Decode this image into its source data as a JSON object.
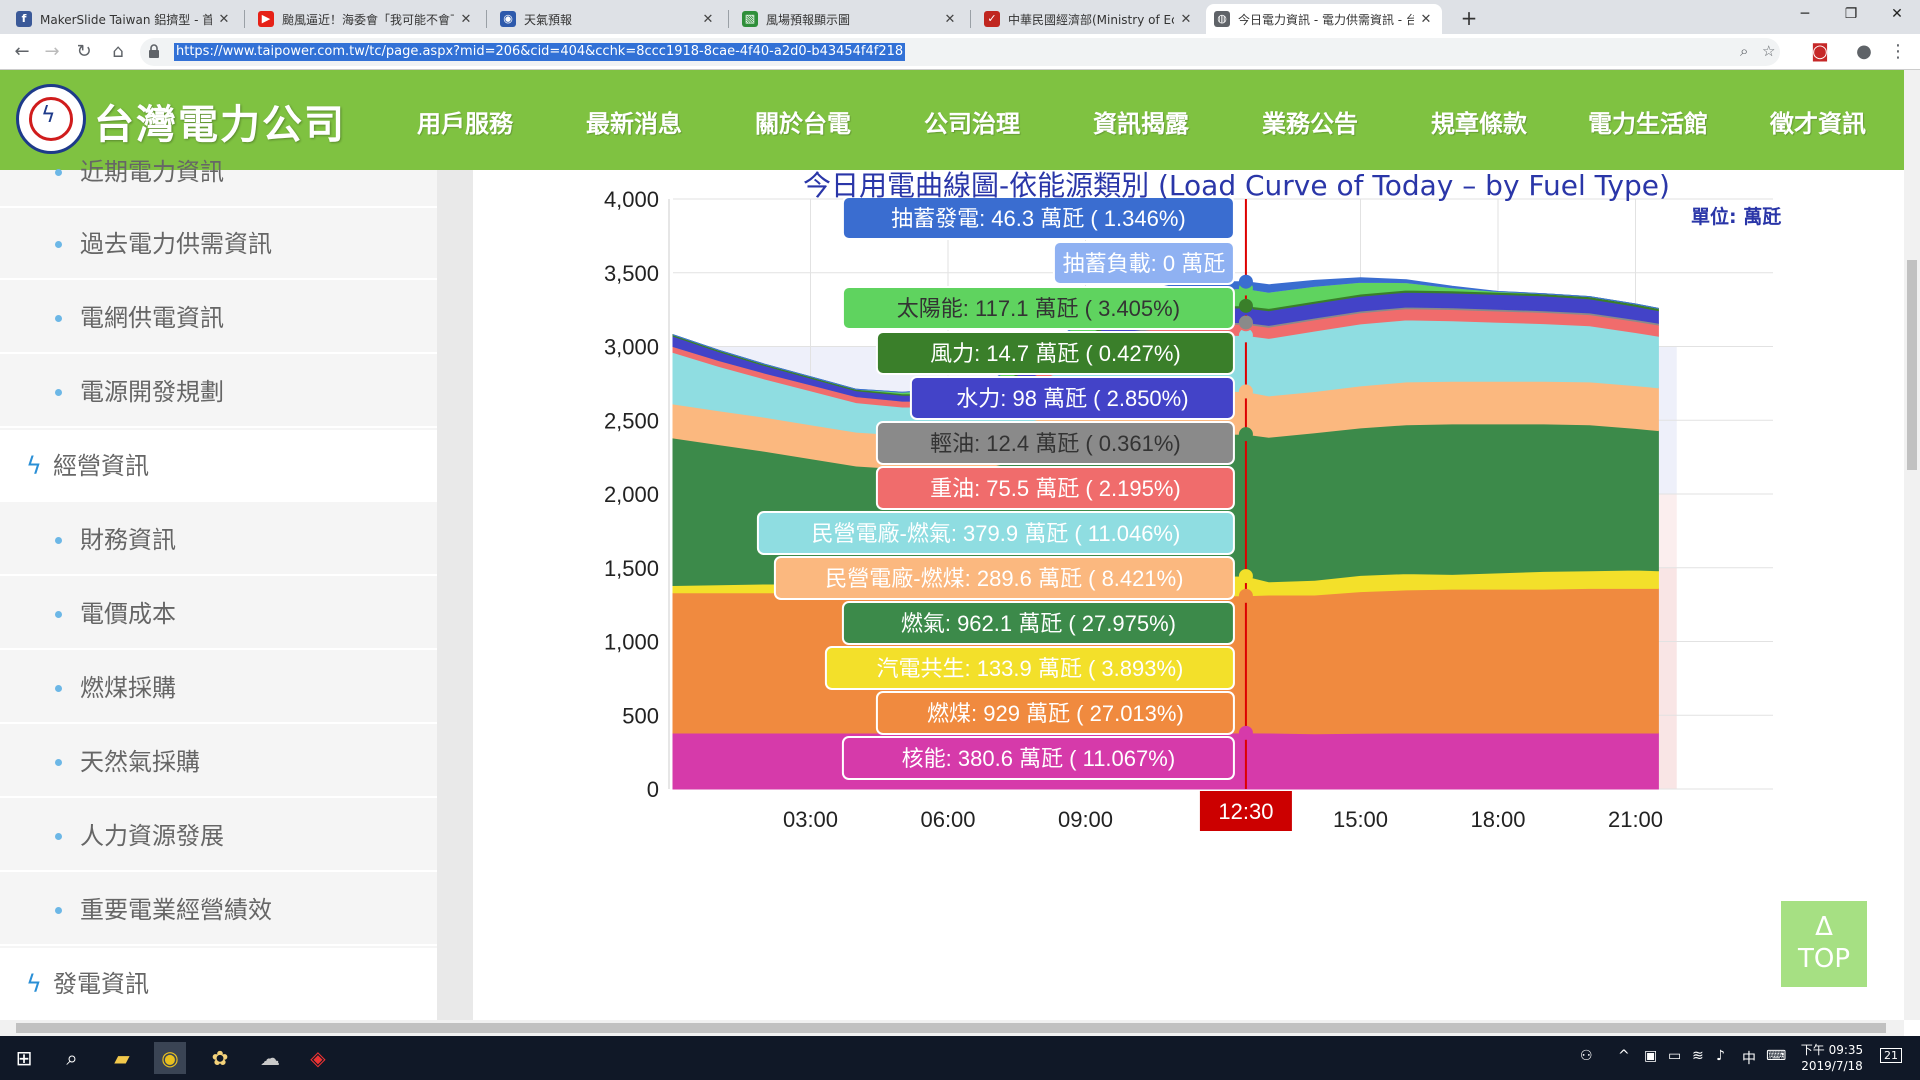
{
  "tabs": [
    {
      "title": "MakerSlide Taiwan 鋁擠型 - 首頁",
      "favicon": "facebook-icon",
      "color": "#3b5998",
      "glyph": "f"
    },
    {
      "title": "颱風逼近！海委會「我可能不會下」",
      "favicon": "youtube-icon",
      "color": "#e62117",
      "glyph": "▶"
    },
    {
      "title": "天氣預報",
      "favicon": "cwb-icon",
      "color": "#2e5aac",
      "glyph": "◉"
    },
    {
      "title": "風場預報顯示圖",
      "favicon": "map-icon",
      "color": "#2f8f3a",
      "glyph": "▧"
    },
    {
      "title": "中華民國經濟部(Ministry of Economic",
      "favicon": "moea-icon",
      "color": "#c0261f",
      "glyph": "✓"
    },
    {
      "title": "今日電力資訊 - 電力供需資訊 - 台",
      "favicon": "globe-icon",
      "color": "#5f6368",
      "glyph": "◍"
    }
  ],
  "toolbar": {
    "url": "https://www.taipower.com.tw/tc/page.aspx?mid=206&cid=404&cchk=8ccc1918-8cae-4f40-a2d0-b43454f4f218"
  },
  "site": {
    "name": "台灣電力公司",
    "menu": [
      "用戶服務",
      "最新消息",
      "關於台電",
      "公司治理",
      "資訊揭露",
      "業務公告",
      "規章條款",
      "電力生活館",
      "徵才資訊"
    ]
  },
  "sidebar": {
    "items": [
      {
        "label": "近期電力資訊",
        "type": "sub"
      },
      {
        "label": "過去電力供需資訊",
        "type": "sub"
      },
      {
        "label": "電網供電資訊",
        "type": "sub"
      },
      {
        "label": "電源開發規劃",
        "type": "sub"
      },
      {
        "label": "經營資訊",
        "type": "cat"
      },
      {
        "label": "財務資訊",
        "type": "sub"
      },
      {
        "label": "電價成本",
        "type": "sub"
      },
      {
        "label": "燃煤採購",
        "type": "sub"
      },
      {
        "label": "天然氣採購",
        "type": "sub"
      },
      {
        "label": "人力資源發展",
        "type": "sub"
      },
      {
        "label": "重要電業經營績效",
        "type": "sub"
      },
      {
        "label": "發電資訊",
        "type": "cat"
      }
    ]
  },
  "chart_data": {
    "type": "area",
    "title": "今日用電曲線圖-依能源類別 (Load Curve of Today – by Fuel Type)",
    "unit_label": "單位: 萬瓩",
    "ylim": [
      0,
      4000
    ],
    "yticks": [
      0,
      500,
      1000,
      1500,
      2000,
      2500,
      3000,
      3500,
      4000
    ],
    "ytick_labels": [
      "0",
      "500",
      "1,000",
      "1,500",
      "2,000",
      "2,500",
      "3,000",
      "3,500",
      "4,000"
    ],
    "xlim": [
      0,
      24
    ],
    "xticks": [
      3,
      6,
      9,
      15,
      18,
      21
    ],
    "xtick_labels": [
      "03:00",
      "06:00",
      "09:00",
      "15:00",
      "18:00",
      "21:00"
    ],
    "cursor_time": 12.5,
    "cursor_label": "12:30",
    "x": [
      0,
      1,
      2,
      3,
      4,
      5,
      6,
      7,
      8,
      9,
      10,
      11,
      12,
      12.5,
      13,
      14,
      15,
      16,
      17,
      18,
      19,
      20,
      21,
      21.5
    ],
    "series": [
      {
        "name": "核能",
        "color": "#d63aaa",
        "tooltip": "核能: 380.6 萬瓩 ( 11.067%)",
        "values": [
          380,
          380,
          380,
          380,
          380,
          380,
          380,
          380,
          380,
          380,
          380,
          380,
          380,
          380.6,
          380,
          375,
          378,
          380,
          380,
          380,
          380,
          380,
          380,
          380
        ]
      },
      {
        "name": "燃煤",
        "color": "#f08a3f",
        "tooltip": "燃煤: 929 萬瓩 ( 27.013%)",
        "values": [
          950,
          950,
          950,
          950,
          950,
          950,
          950,
          950,
          950,
          930,
          930,
          930,
          930,
          929,
          935,
          940,
          960,
          970,
          975,
          975,
          975,
          980,
          980,
          980
        ]
      },
      {
        "name": "汽電共生",
        "color": "#f3e02a",
        "tooltip": "汽電共生: 133.9 萬瓩 ( 3.893%)",
        "values": [
          50,
          55,
          60,
          60,
          60,
          60,
          60,
          60,
          80,
          100,
          120,
          130,
          134,
          133.9,
          90,
          100,
          110,
          110,
          100,
          110,
          120,
          120,
          125,
          120
        ]
      },
      {
        "name": "燃氣",
        "color": "#3c8a4a",
        "tooltip": "燃氣: 962.1 萬瓩 ( 27.975%)",
        "values": [
          1000,
          950,
          900,
          850,
          800,
          780,
          780,
          800,
          850,
          900,
          950,
          962,
          962,
          962.1,
          980,
          1000,
          1000,
          1010,
          1020,
          1010,
          1000,
          990,
          960,
          950
        ]
      },
      {
        "name": "民營電廠-燃煤",
        "color": "#fbb87f",
        "tooltip": "民營電廠-燃煤: 289.6 萬瓩 ( 8.421%)",
        "values": [
          230,
          230,
          230,
          230,
          230,
          230,
          230,
          230,
          250,
          270,
          285,
          290,
          290,
          289.6,
          280,
          280,
          285,
          290,
          290,
          290,
          290,
          290,
          290,
          290
        ]
      },
      {
        "name": "民營電廠-燃氣",
        "color": "#8fdde1",
        "tooltip": "民營電廠-燃氣: 379.9 萬瓩 ( 11.046%)",
        "values": [
          350,
          300,
          260,
          230,
          200,
          190,
          190,
          210,
          260,
          330,
          360,
          375,
          380,
          379.9,
          390,
          410,
          420,
          420,
          410,
          400,
          390,
          380,
          360,
          350
        ]
      },
      {
        "name": "重油",
        "color": "#f06c6c",
        "tooltip": "重油: 75.5 萬瓩 ( 2.195%)",
        "values": [
          40,
          40,
          40,
          40,
          40,
          40,
          40,
          40,
          50,
          60,
          70,
          75,
          75,
          75.5,
          76,
          76,
          76,
          76,
          76,
          76,
          76,
          76,
          76,
          76
        ]
      },
      {
        "name": "輕油",
        "color": "#8a8a8a",
        "tooltip": "輕油: 12.4 萬瓩 ( 0.361%)",
        "values": [
          0,
          0,
          0,
          0,
          0,
          0,
          0,
          0,
          0,
          5,
          10,
          12,
          12,
          12.4,
          12,
          12,
          12,
          12,
          12,
          12,
          12,
          12,
          12,
          12
        ]
      },
      {
        "name": "水力",
        "color": "#4343c8",
        "tooltip": "水力: 98 萬瓩 ( 2.850%)",
        "values": [
          70,
          60,
          50,
          45,
          40,
          40,
          40,
          50,
          70,
          90,
          100,
          100,
          98,
          98,
          100,
          100,
          100,
          100,
          100,
          100,
          100,
          95,
          90,
          85
        ]
      },
      {
        "name": "風力",
        "color": "#3a7f2a",
        "tooltip": "風力: 14.7 萬瓩 ( 0.427%)",
        "values": [
          10,
          10,
          10,
          10,
          10,
          10,
          10,
          10,
          12,
          14,
          15,
          15,
          15,
          14.7,
          15,
          15,
          15,
          15,
          15,
          15,
          15,
          15,
          15,
          15
        ]
      },
      {
        "name": "太陽能",
        "color": "#5fd35f",
        "tooltip": "太陽能: 117.1 萬瓩 ( 3.405%)",
        "values": [
          0,
          0,
          0,
          0,
          0,
          10,
          30,
          50,
          80,
          100,
          115,
          118,
          117,
          117.1,
          110,
          100,
          80,
          50,
          20,
          5,
          0,
          0,
          0,
          0
        ]
      },
      {
        "name": "抽蓄負載",
        "color": "#8fb1f2",
        "tooltip": "抽蓄負載: 0 萬瓩",
        "values": [
          0,
          0,
          0,
          0,
          0,
          0,
          0,
          0,
          0,
          0,
          0,
          0,
          0,
          0,
          0,
          0,
          0,
          0,
          0,
          0,
          0,
          0,
          0,
          0
        ]
      },
      {
        "name": "抽蓄發電",
        "color": "#3a6dd0",
        "tooltip": "抽蓄發電: 46.3 萬瓩 ( 1.346%)",
        "values": [
          0,
          0,
          0,
          0,
          0,
          0,
          0,
          0,
          0,
          0,
          20,
          40,
          46,
          46.3,
          50,
          40,
          30,
          20,
          10,
          0,
          0,
          0,
          0,
          0
        ]
      }
    ],
    "tooltip_text_colors": [
      "#fff",
      "#fff",
      "#333",
      "#fff",
      "#fff",
      "#333",
      "#fff",
      "#fff",
      "#fff",
      "#fff",
      "#fff",
      "#fff",
      "#fff"
    ]
  },
  "top_button": {
    "arrow": "Δ",
    "label": "TOP"
  },
  "taskbar": {
    "time": "下午 09:35",
    "date": "2019/7/18",
    "ime": "中",
    "notifications": "21"
  }
}
